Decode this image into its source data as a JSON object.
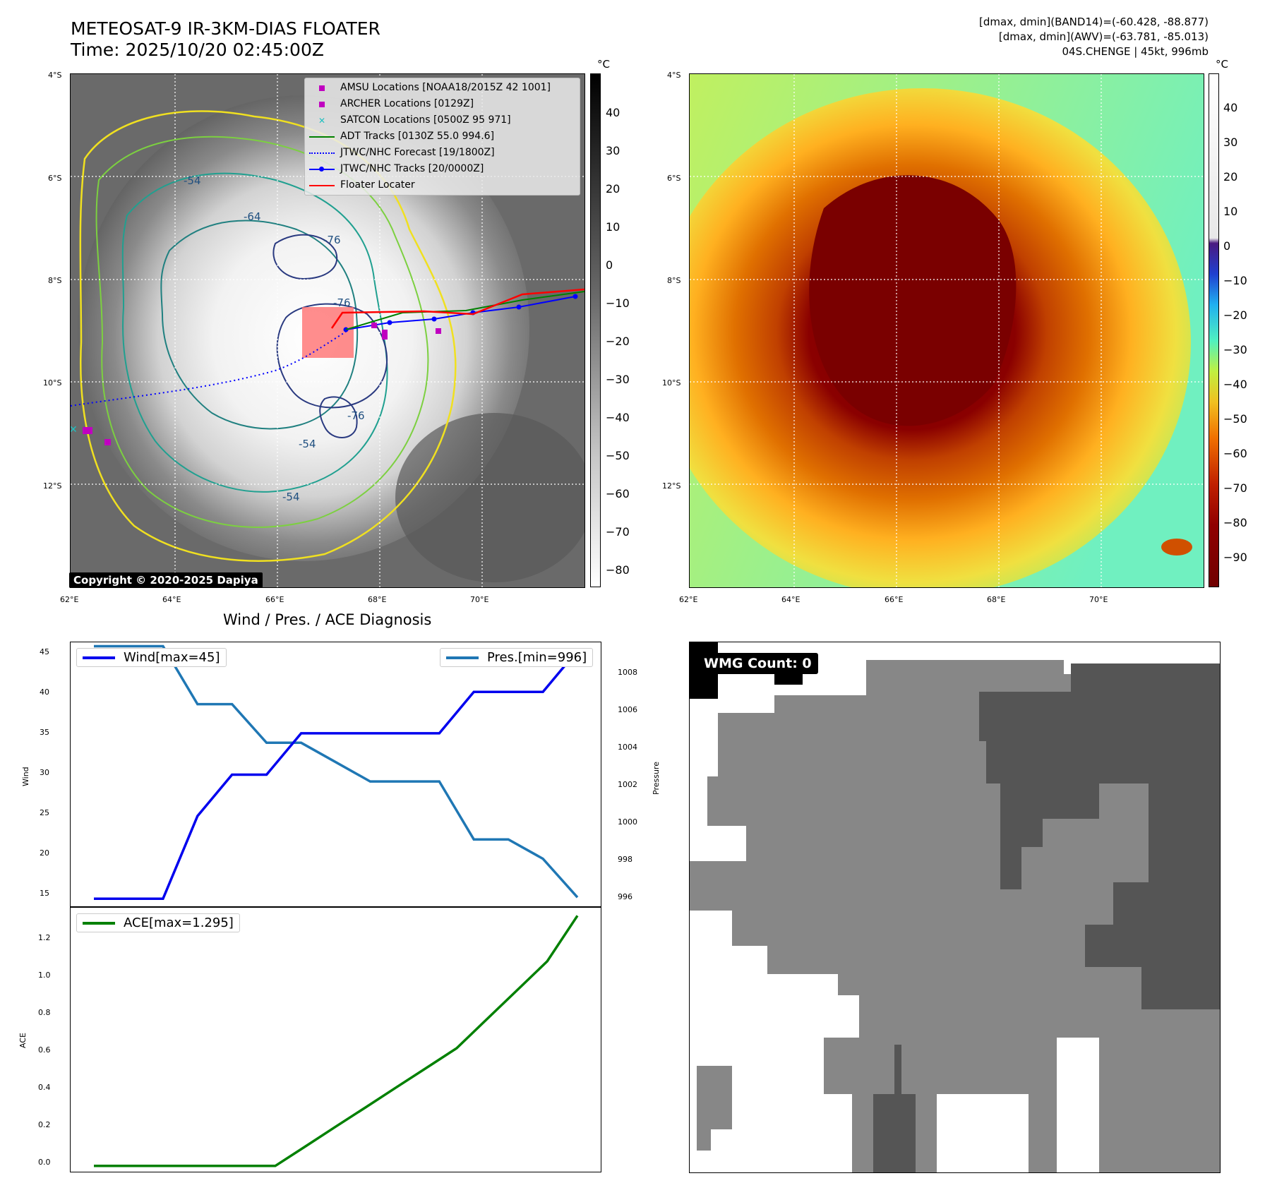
{
  "header": {
    "title_line1": "METEOSAT-9 IR-3KM-DIAS FLOATER",
    "title_line2": "Time: 2025/10/20 02:45:00Z",
    "info_line1": "[dmax, dmin](BAND14)=(-60.428, -88.877)",
    "info_line2": "[dmax, dmin](AWV)=(-63.781, -85.013)",
    "info_line3": "04S.CHENGE | 45kt, 996mb"
  },
  "map": {
    "lat_labels": [
      "4°S",
      "6°S",
      "8°S",
      "10°S",
      "12°S"
    ],
    "lon_labels": [
      "62°E",
      "64°E",
      "66°E",
      "68°E",
      "70°E"
    ],
    "contour_labels": [
      "-54",
      "-64",
      "-76",
      "-76",
      "-76",
      "-54",
      "-54"
    ],
    "copyright": "Copyright © 2020-2025 Dapiya",
    "legend": [
      {
        "label": "AMSU Locations [NOAA18/2015Z 42 1001]",
        "color": "#c000c0",
        "symbol": "square"
      },
      {
        "label": "ARCHER Locations [0129Z]",
        "color": "#c000c0",
        "symbol": "square"
      },
      {
        "label": "SATCON Locations [0500Z 95 971]",
        "color": "#20c0c0",
        "symbol": "x"
      },
      {
        "label": "ADT Tracks [0130Z 55.0 994.6]",
        "color": "#008000",
        "symbol": "line"
      },
      {
        "label": "JTWC/NHC Forecast [19/1800Z]",
        "color": "#0000ff",
        "symbol": "dotted"
      },
      {
        "label": "JTWC/NHC Tracks [20/0000Z]",
        "color": "#0000ff",
        "symbol": "line-dot"
      },
      {
        "label": "Floater Locater",
        "color": "#ff0000",
        "symbol": "line"
      }
    ]
  },
  "colorbar_gray": {
    "unit": "°C",
    "ticks": [
      "40",
      "30",
      "20",
      "10",
      "0",
      "−10",
      "−20",
      "−30",
      "−40",
      "−50",
      "−60",
      "−70",
      "−80"
    ]
  },
  "colorbar_color": {
    "unit": "°C",
    "ticks": [
      "40",
      "30",
      "20",
      "10",
      "0",
      "−10",
      "−20",
      "−30",
      "−40",
      "−50",
      "−60",
      "−70",
      "−80",
      "−90"
    ]
  },
  "diagnosis": {
    "title": "Wind / Pres. / ACE Diagnosis",
    "wind_axis_label": "Wind",
    "pressure_axis_label": "Pressure",
    "ace_axis_label": "ACE",
    "wind_legend": "Wind[max=45]",
    "pres_legend": "Pres.[min=996]",
    "ace_legend": "ACE[max=1.295]",
    "wind_ticks": [
      "45",
      "40",
      "35",
      "30",
      "25",
      "20",
      "15"
    ],
    "pres_ticks": [
      "1008",
      "1006",
      "1004",
      "1002",
      "1000",
      "998",
      "996"
    ],
    "ace_ticks": [
      "1.2",
      "1.0",
      "0.8",
      "0.6",
      "0.4",
      "0.2",
      "0.0"
    ]
  },
  "wmg": {
    "label": "WMG Count: 0"
  },
  "colors": {
    "wind": "#0000ee",
    "pressure": "#1f77b4",
    "ace": "#008000"
  },
  "chart_data": [
    {
      "type": "line",
      "title": "Wind / Pres. / ACE Diagnosis",
      "ylabel": "Wind",
      "ylim": [
        14,
        46
      ],
      "series": [
        {
          "name": "Wind[max=45]",
          "values": [
            15,
            15,
            15,
            25,
            30,
            30,
            35,
            35,
            35,
            35,
            35,
            40,
            40,
            40,
            45
          ]
        }
      ]
    },
    {
      "type": "line",
      "ylabel": "Pressure",
      "ylim": [
        995.5,
        1009.2
      ],
      "series": [
        {
          "name": "Pres.[min=996]",
          "values": [
            1009,
            1009,
            1009,
            1006,
            1006,
            1004,
            1004,
            1003,
            1002,
            1002,
            1002,
            999,
            999,
            998,
            996
          ]
        }
      ]
    },
    {
      "type": "line",
      "ylabel": "ACE",
      "ylim": [
        -0.03,
        1.34
      ],
      "series": [
        {
          "name": "ACE[max=1.295]",
          "values": [
            0.0,
            0.0,
            0.0,
            0.0,
            0.0,
            0.0,
            0.0,
            0.101,
            0.203,
            0.304,
            0.406,
            0.507,
            0.609,
            0.759,
            0.909,
            1.059,
            1.295
          ]
        }
      ]
    }
  ]
}
